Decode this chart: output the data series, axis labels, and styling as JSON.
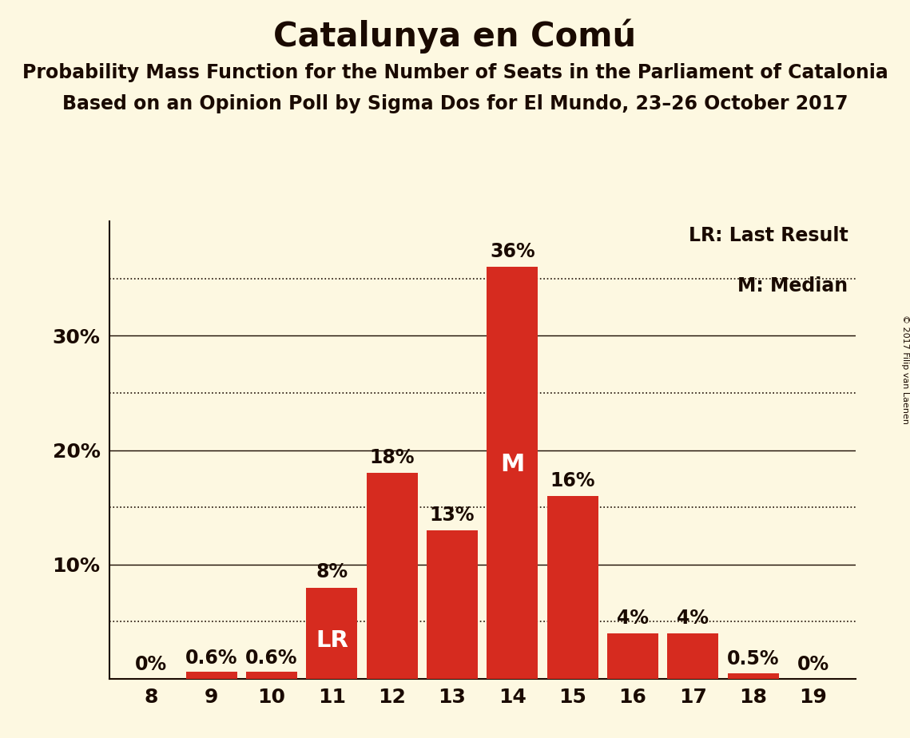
{
  "title": "Catalunya en Comú",
  "subtitle1": "Probability Mass Function for the Number of Seats in the Parliament of Catalonia",
  "subtitle2": "Based on an Opinion Poll by Sigma Dos for El Mundo, 23–26 October 2017",
  "copyright": "© 2017 Filip van Laenen",
  "seats": [
    8,
    9,
    10,
    11,
    12,
    13,
    14,
    15,
    16,
    17,
    18,
    19
  ],
  "probabilities": [
    0.0,
    0.6,
    0.6,
    8.0,
    18.0,
    13.0,
    36.0,
    16.0,
    4.0,
    4.0,
    0.5,
    0.0
  ],
  "bar_color": "#d62b1f",
  "background_color": "#fdf8e1",
  "text_color": "#1a0a00",
  "last_result_seat": 11,
  "median_seat": 14,
  "solid_gridlines": [
    10,
    20,
    30
  ],
  "dotted_gridlines": [
    5,
    15,
    25,
    35
  ],
  "yticks": [
    10,
    20,
    30
  ],
  "ytick_labels": [
    "10%",
    "20%",
    "30%"
  ],
  "ylim": [
    0,
    40
  ],
  "xlim": [
    7.3,
    19.7
  ],
  "title_fontsize": 30,
  "subtitle_fontsize": 17,
  "bar_label_fontsize": 17,
  "axis_fontsize": 18,
  "legend_fontsize": 17,
  "copyright_fontsize": 8
}
